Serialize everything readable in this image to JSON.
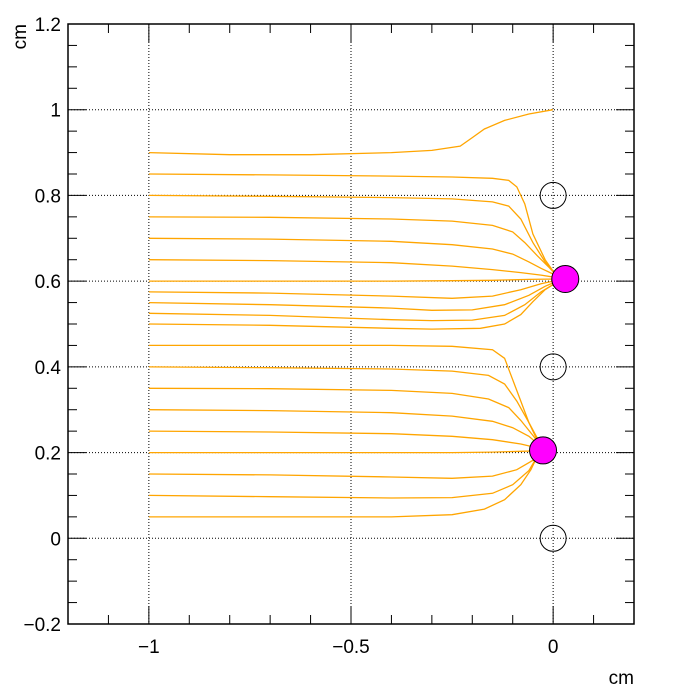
{
  "chart_data": {
    "type": "line",
    "xlabel": "cm",
    "ylabel": "cm",
    "xlim": [
      -1.2,
      0.2
    ],
    "ylim": [
      -0.2,
      1.2
    ],
    "grid": true,
    "x_ticks": [
      {
        "value": -1,
        "label": "−1"
      },
      {
        "value": -0.5,
        "label": "−0.5"
      },
      {
        "value": 0,
        "label": "0"
      }
    ],
    "y_ticks": [
      {
        "value": -0.2,
        "label": "−0.2"
      },
      {
        "value": 0,
        "label": "0"
      },
      {
        "value": 0.2,
        "label": "0.2"
      },
      {
        "value": 0.4,
        "label": "0.4"
      },
      {
        "value": 0.6,
        "label": "0.6"
      },
      {
        "value": 0.8,
        "label": "0.8"
      },
      {
        "value": 1,
        "label": "1"
      },
      {
        "value": 1.2,
        "label": "1.2"
      }
    ],
    "line_color": "#ffa500",
    "open_circles": [
      {
        "x": 0,
        "y": 0.8
      },
      {
        "x": 0,
        "y": 0.4
      },
      {
        "x": 0,
        "y": 0.0
      }
    ],
    "filled_circles": [
      {
        "x": 0.03,
        "y": 0.605,
        "color": "#ff00ff"
      },
      {
        "x": -0.025,
        "y": 0.205,
        "color": "#ff00ff"
      }
    ],
    "series": [
      {
        "points": [
          [
            -1,
            0.9
          ],
          [
            -0.8,
            0.895
          ],
          [
            -0.6,
            0.895
          ],
          [
            -0.4,
            0.9
          ],
          [
            -0.3,
            0.905
          ],
          [
            -0.23,
            0.915
          ],
          [
            -0.2,
            0.935
          ],
          [
            -0.17,
            0.955
          ],
          [
            -0.12,
            0.975
          ],
          [
            -0.06,
            0.99
          ],
          [
            0,
            1.0
          ]
        ]
      },
      {
        "points": [
          [
            -1,
            0.85
          ],
          [
            -0.7,
            0.848
          ],
          [
            -0.4,
            0.845
          ],
          [
            -0.25,
            0.843
          ],
          [
            -0.15,
            0.84
          ],
          [
            -0.11,
            0.835
          ],
          [
            -0.09,
            0.82
          ],
          [
            -0.07,
            0.78
          ],
          [
            -0.05,
            0.71
          ],
          [
            -0.02,
            0.65
          ],
          [
            0.01,
            0.61
          ]
        ]
      },
      {
        "points": [
          [
            -1,
            0.8
          ],
          [
            -0.7,
            0.798
          ],
          [
            -0.4,
            0.795
          ],
          [
            -0.25,
            0.792
          ],
          [
            -0.15,
            0.785
          ],
          [
            -0.11,
            0.775
          ],
          [
            -0.08,
            0.745
          ],
          [
            -0.05,
            0.69
          ],
          [
            -0.02,
            0.645
          ],
          [
            0.01,
            0.611
          ]
        ]
      },
      {
        "points": [
          [
            -1,
            0.75
          ],
          [
            -0.7,
            0.749
          ],
          [
            -0.4,
            0.745
          ],
          [
            -0.25,
            0.74
          ],
          [
            -0.15,
            0.73
          ],
          [
            -0.1,
            0.715
          ],
          [
            -0.07,
            0.69
          ],
          [
            -0.04,
            0.66
          ],
          [
            -0.01,
            0.632
          ],
          [
            0.01,
            0.612
          ]
        ]
      },
      {
        "points": [
          [
            -1,
            0.7
          ],
          [
            -0.7,
            0.698
          ],
          [
            -0.4,
            0.693
          ],
          [
            -0.25,
            0.685
          ],
          [
            -0.15,
            0.675
          ],
          [
            -0.1,
            0.663
          ],
          [
            -0.06,
            0.645
          ],
          [
            -0.03,
            0.63
          ],
          [
            0.01,
            0.612
          ]
        ]
      },
      {
        "points": [
          [
            -1,
            0.65
          ],
          [
            -0.7,
            0.648
          ],
          [
            -0.4,
            0.643
          ],
          [
            -0.25,
            0.635
          ],
          [
            -0.15,
            0.627
          ],
          [
            -0.08,
            0.62
          ],
          [
            -0.03,
            0.614
          ],
          [
            0.01,
            0.608
          ]
        ]
      },
      {
        "points": [
          [
            -1,
            0.6
          ],
          [
            -0.7,
            0.6
          ],
          [
            -0.4,
            0.6
          ],
          [
            -0.25,
            0.601
          ],
          [
            -0.15,
            0.602
          ],
          [
            -0.06,
            0.604
          ],
          [
            0.01,
            0.605
          ]
        ]
      },
      {
        "points": [
          [
            -1,
            0.575
          ],
          [
            -0.7,
            0.572
          ],
          [
            -0.4,
            0.565
          ],
          [
            -0.25,
            0.56
          ],
          [
            -0.15,
            0.565
          ],
          [
            -0.08,
            0.58
          ],
          [
            -0.03,
            0.594
          ],
          [
            0.01,
            0.602
          ]
        ]
      },
      {
        "points": [
          [
            -1,
            0.55
          ],
          [
            -0.7,
            0.545
          ],
          [
            -0.4,
            0.537
          ],
          [
            -0.3,
            0.532
          ],
          [
            -0.2,
            0.533
          ],
          [
            -0.12,
            0.545
          ],
          [
            -0.06,
            0.567
          ],
          [
            -0.02,
            0.588
          ],
          [
            0.01,
            0.6
          ]
        ]
      },
      {
        "points": [
          [
            -1,
            0.525
          ],
          [
            -0.7,
            0.52
          ],
          [
            -0.4,
            0.51
          ],
          [
            -0.3,
            0.508
          ],
          [
            -0.2,
            0.509
          ],
          [
            -0.12,
            0.52
          ],
          [
            -0.07,
            0.545
          ],
          [
            -0.03,
            0.575
          ],
          [
            0.01,
            0.598
          ]
        ]
      },
      {
        "points": [
          [
            -1,
            0.5
          ],
          [
            -0.7,
            0.497
          ],
          [
            -0.4,
            0.49
          ],
          [
            -0.3,
            0.488
          ],
          [
            -0.18,
            0.49
          ],
          [
            -0.12,
            0.5
          ],
          [
            -0.08,
            0.522
          ],
          [
            -0.05,
            0.552
          ],
          [
            -0.02,
            0.58
          ],
          [
            0.01,
            0.598
          ]
        ]
      },
      {
        "points": [
          [
            -1,
            0.45
          ],
          [
            -0.7,
            0.45
          ],
          [
            -0.4,
            0.45
          ],
          [
            -0.25,
            0.448
          ],
          [
            -0.15,
            0.44
          ],
          [
            -0.12,
            0.42
          ],
          [
            -0.1,
            0.37
          ],
          [
            -0.08,
            0.32
          ],
          [
            -0.06,
            0.27
          ],
          [
            -0.04,
            0.23
          ],
          [
            -0.025,
            0.21
          ]
        ]
      },
      {
        "points": [
          [
            -1,
            0.4
          ],
          [
            -0.7,
            0.398
          ],
          [
            -0.4,
            0.395
          ],
          [
            -0.25,
            0.39
          ],
          [
            -0.16,
            0.38
          ],
          [
            -0.12,
            0.36
          ],
          [
            -0.09,
            0.32
          ],
          [
            -0.06,
            0.27
          ],
          [
            -0.04,
            0.235
          ],
          [
            -0.025,
            0.212
          ]
        ]
      },
      {
        "points": [
          [
            -1,
            0.35
          ],
          [
            -0.7,
            0.349
          ],
          [
            -0.4,
            0.345
          ],
          [
            -0.25,
            0.338
          ],
          [
            -0.16,
            0.325
          ],
          [
            -0.11,
            0.305
          ],
          [
            -0.08,
            0.275
          ],
          [
            -0.05,
            0.24
          ],
          [
            -0.03,
            0.215
          ]
        ]
      },
      {
        "points": [
          [
            -1,
            0.3
          ],
          [
            -0.7,
            0.298
          ],
          [
            -0.4,
            0.293
          ],
          [
            -0.25,
            0.285
          ],
          [
            -0.15,
            0.273
          ],
          [
            -0.1,
            0.258
          ],
          [
            -0.06,
            0.238
          ],
          [
            -0.035,
            0.218
          ]
        ]
      },
      {
        "points": [
          [
            -1,
            0.25
          ],
          [
            -0.7,
            0.248
          ],
          [
            -0.4,
            0.244
          ],
          [
            -0.25,
            0.238
          ],
          [
            -0.15,
            0.23
          ],
          [
            -0.08,
            0.22
          ],
          [
            -0.035,
            0.21
          ]
        ]
      },
      {
        "points": [
          [
            -1,
            0.2
          ],
          [
            -0.7,
            0.2
          ],
          [
            -0.4,
            0.2
          ],
          [
            -0.25,
            0.2
          ],
          [
            -0.15,
            0.201
          ],
          [
            -0.08,
            0.203
          ],
          [
            -0.04,
            0.204
          ]
        ]
      },
      {
        "points": [
          [
            -1,
            0.15
          ],
          [
            -0.7,
            0.148
          ],
          [
            -0.4,
            0.143
          ],
          [
            -0.25,
            0.14
          ],
          [
            -0.15,
            0.145
          ],
          [
            -0.09,
            0.16
          ],
          [
            -0.05,
            0.182
          ],
          [
            -0.035,
            0.196
          ]
        ]
      },
      {
        "points": [
          [
            -1,
            0.1
          ],
          [
            -0.7,
            0.097
          ],
          [
            -0.4,
            0.094
          ],
          [
            -0.25,
            0.095
          ],
          [
            -0.15,
            0.105
          ],
          [
            -0.1,
            0.125
          ],
          [
            -0.06,
            0.158
          ],
          [
            -0.04,
            0.19
          ]
        ]
      },
      {
        "points": [
          [
            -1,
            0.05
          ],
          [
            -0.7,
            0.05
          ],
          [
            -0.4,
            0.05
          ],
          [
            -0.25,
            0.055
          ],
          [
            -0.17,
            0.068
          ],
          [
            -0.12,
            0.09
          ],
          [
            -0.08,
            0.125
          ],
          [
            -0.055,
            0.16
          ],
          [
            -0.04,
            0.19
          ]
        ]
      }
    ]
  }
}
